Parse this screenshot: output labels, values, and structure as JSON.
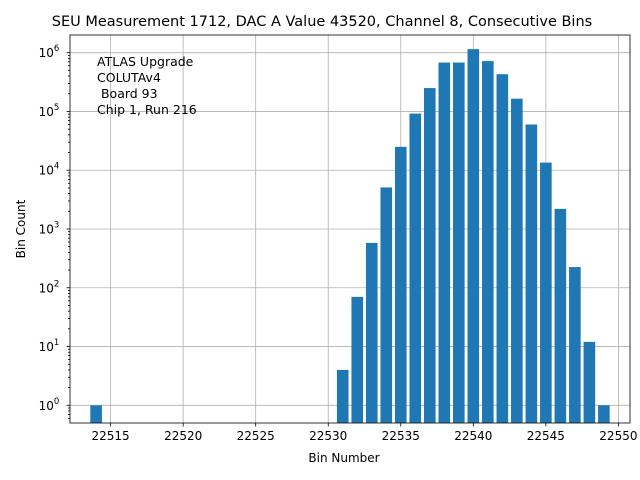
{
  "chart_data": {
    "type": "bar",
    "title": "SEU Measurement 1712, DAC A Value 43520, Channel 8, Consecutive Bins",
    "xlabel": "Bin Number",
    "ylabel": "Bin Count",
    "yscale": "log",
    "grid": true,
    "xlim": [
      22512.2,
      22550.8
    ],
    "ylim": [
      0.5,
      2000000
    ],
    "xticks": [
      22515,
      22520,
      22525,
      22530,
      22535,
      22540,
      22545,
      22550
    ],
    "yticks": [
      {
        "value": 1,
        "base": "10",
        "exp": "0"
      },
      {
        "value": 10,
        "base": "10",
        "exp": "1"
      },
      {
        "value": 100,
        "base": "10",
        "exp": "2"
      },
      {
        "value": 1000,
        "base": "10",
        "exp": "3"
      },
      {
        "value": 10000,
        "base": "10",
        "exp": "4"
      },
      {
        "value": 100000,
        "base": "10",
        "exp": "5"
      },
      {
        "value": 1000000,
        "base": "10",
        "exp": "6"
      }
    ],
    "bar_color": "#1f77b4",
    "x": [
      22514,
      22531,
      22532,
      22533,
      22534,
      22535,
      22536,
      22537,
      22538,
      22539,
      22540,
      22541,
      22542,
      22543,
      22544,
      22545,
      22546,
      22547,
      22548,
      22549
    ],
    "values": [
      1,
      4,
      70,
      580,
      5100,
      25000,
      92000,
      250000,
      680000,
      680000,
      1150000,
      720000,
      430000,
      165000,
      60000,
      13500,
      2200,
      225,
      12,
      1
    ],
    "annotation": [
      "ATLAS Upgrade",
      "COLUTAv4",
      " Board 93",
      "Chip 1, Run 216"
    ]
  }
}
